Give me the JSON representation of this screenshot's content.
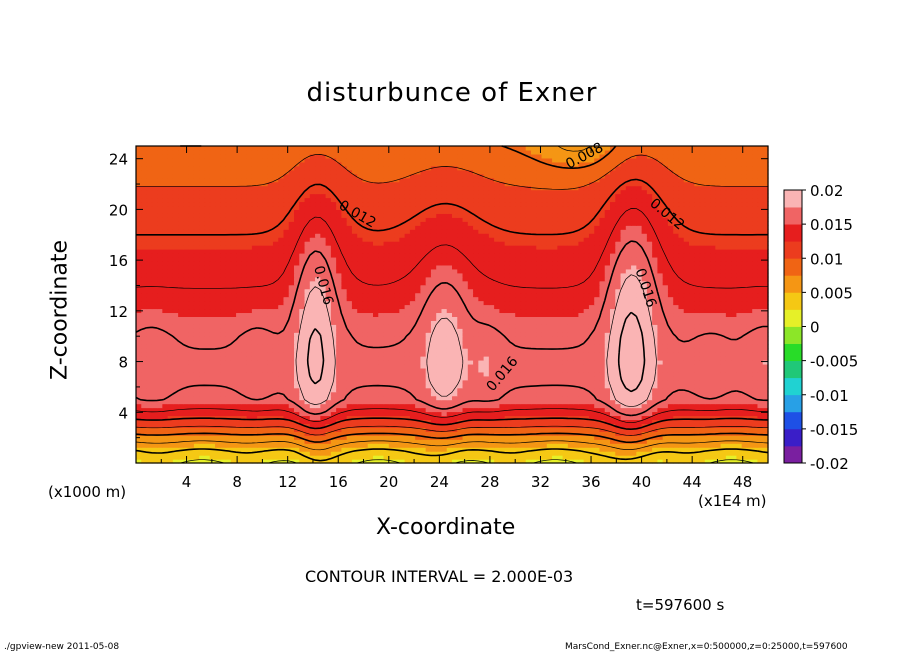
{
  "title": "disturbunce of Exner",
  "footer": {
    "left": "./gpview-new   2011-05-08",
    "right": "MarsCond_Exner.nc@Exner,x=0:500000,z=0:25000,t=597600"
  },
  "chart_data": {
    "type": "contour",
    "title": "disturbunce of Exner",
    "xlabel": "X-coordinate",
    "ylabel": "Z-coordinate",
    "x_unit_label": "(x1000 m)",
    "x_scale_label": "(x1E4 m)",
    "xlim": [
      0,
      50
    ],
    "ylim": [
      0,
      25
    ],
    "xticks": [
      "4",
      "8",
      "12",
      "16",
      "20",
      "24",
      "28",
      "32",
      "36",
      "40",
      "44",
      "48"
    ],
    "xtick_values": [
      4,
      8,
      12,
      16,
      20,
      24,
      28,
      32,
      36,
      40,
      44,
      48
    ],
    "yticks": [
      "4",
      "8",
      "12",
      "16",
      "20",
      "24"
    ],
    "ytick_values": [
      4,
      8,
      12,
      16,
      20,
      24
    ],
    "contour_interval_text": "CONTOUR INTERVAL = 2.000E-03",
    "contour_interval": 0.002,
    "time_text": "t=597600 s",
    "contour_labels": [
      {
        "text": "0.008",
        "x": 35.5,
        "z": 24.2,
        "angle": -28
      },
      {
        "text": "0.012",
        "x": 17.5,
        "z": 19.6,
        "angle": 30
      },
      {
        "text": "0.012",
        "x": 42.0,
        "z": 19.6,
        "angle": 40
      },
      {
        "text": "0.016",
        "x": 14.8,
        "z": 14.0,
        "angle": 75
      },
      {
        "text": "0.016",
        "x": 40.3,
        "z": 13.8,
        "angle": 72
      },
      {
        "text": "0.016",
        "x": 29.0,
        "z": 7.0,
        "angle": -50
      }
    ],
    "colorbar": {
      "labels": [
        "0.02",
        "0.015",
        "0.01",
        "0.005",
        "0",
        "-0.005",
        "-0.01",
        "-0.015",
        "-0.02"
      ],
      "min": -0.02,
      "max": 0.02,
      "colors": [
        "#7a1fa0",
        "#3a1ec8",
        "#1e50e6",
        "#28a0e6",
        "#20d2d2",
        "#20c878",
        "#28dc28",
        "#8ce628",
        "#e6f028",
        "#f5c814",
        "#f59614",
        "#f06414",
        "#ec3c1e",
        "#e61e1e",
        "#f06464",
        "#fab4b4"
      ]
    },
    "field": {
      "description": "Exner pressure disturbance: low near surface, maximum band z~5-10, plumes at x~14, 24, 40",
      "base_profile": [
        {
          "z": 0,
          "v": 0.002
        },
        {
          "z": 1,
          "v": 0.004
        },
        {
          "z": 2,
          "v": 0.007
        },
        {
          "z": 3,
          "v": 0.0105
        },
        {
          "z": 4,
          "v": 0.0135
        },
        {
          "z": 5,
          "v": 0.0155
        },
        {
          "z": 6.5,
          "v": 0.0162
        },
        {
          "z": 8,
          "v": 0.0163
        },
        {
          "z": 10,
          "v": 0.0157
        },
        {
          "z": 12,
          "v": 0.0148
        },
        {
          "z": 14,
          "v": 0.0139
        },
        {
          "z": 16,
          "v": 0.013
        },
        {
          "z": 18,
          "v": 0.012
        },
        {
          "z": 20,
          "v": 0.011
        },
        {
          "z": 22,
          "v": 0.0099
        },
        {
          "z": 24,
          "v": 0.0087
        },
        {
          "z": 25,
          "v": 0.008
        }
      ],
      "plumes": [
        {
          "x": 14.2,
          "z": 9.0,
          "sx": 1.1,
          "sz": 6.0,
          "amp": 0.0042
        },
        {
          "x": 39.2,
          "z": 9.0,
          "sx": 1.3,
          "sz": 6.0,
          "amp": 0.0048
        },
        {
          "x": 24.4,
          "z": 8.5,
          "sx": 1.2,
          "sz": 4.5,
          "amp": 0.003
        },
        {
          "x": 27.8,
          "z": 7.5,
          "sx": 0.9,
          "sz": 2.5,
          "amp": 0.0012
        },
        {
          "x": 9.6,
          "z": 8.0,
          "sx": 1.0,
          "sz": 2.2,
          "amp": 0.0012
        },
        {
          "x": 1.2,
          "z": 7.8,
          "sx": 1.2,
          "sz": 2.5,
          "amp": 0.0012
        },
        {
          "x": 45.5,
          "z": 7.5,
          "sx": 1.0,
          "sz": 2.0,
          "amp": 0.001
        },
        {
          "x": 49.8,
          "z": 8.0,
          "sx": 1.2,
          "sz": 2.5,
          "amp": 0.0012
        },
        {
          "x": 14.5,
          "z": 20.0,
          "sx": 1.8,
          "sz": 6.0,
          "amp": 0.0018
        },
        {
          "x": 39.5,
          "z": 20.0,
          "sx": 2.0,
          "sz": 6.0,
          "amp": 0.0022
        },
        {
          "x": 24.5,
          "z": 19.0,
          "sx": 2.4,
          "sz": 6.0,
          "amp": 0.0012
        },
        {
          "x": 35.0,
          "z": 25.0,
          "sx": 2.5,
          "sz": 1.5,
          "amp": -0.0025
        }
      ]
    }
  }
}
